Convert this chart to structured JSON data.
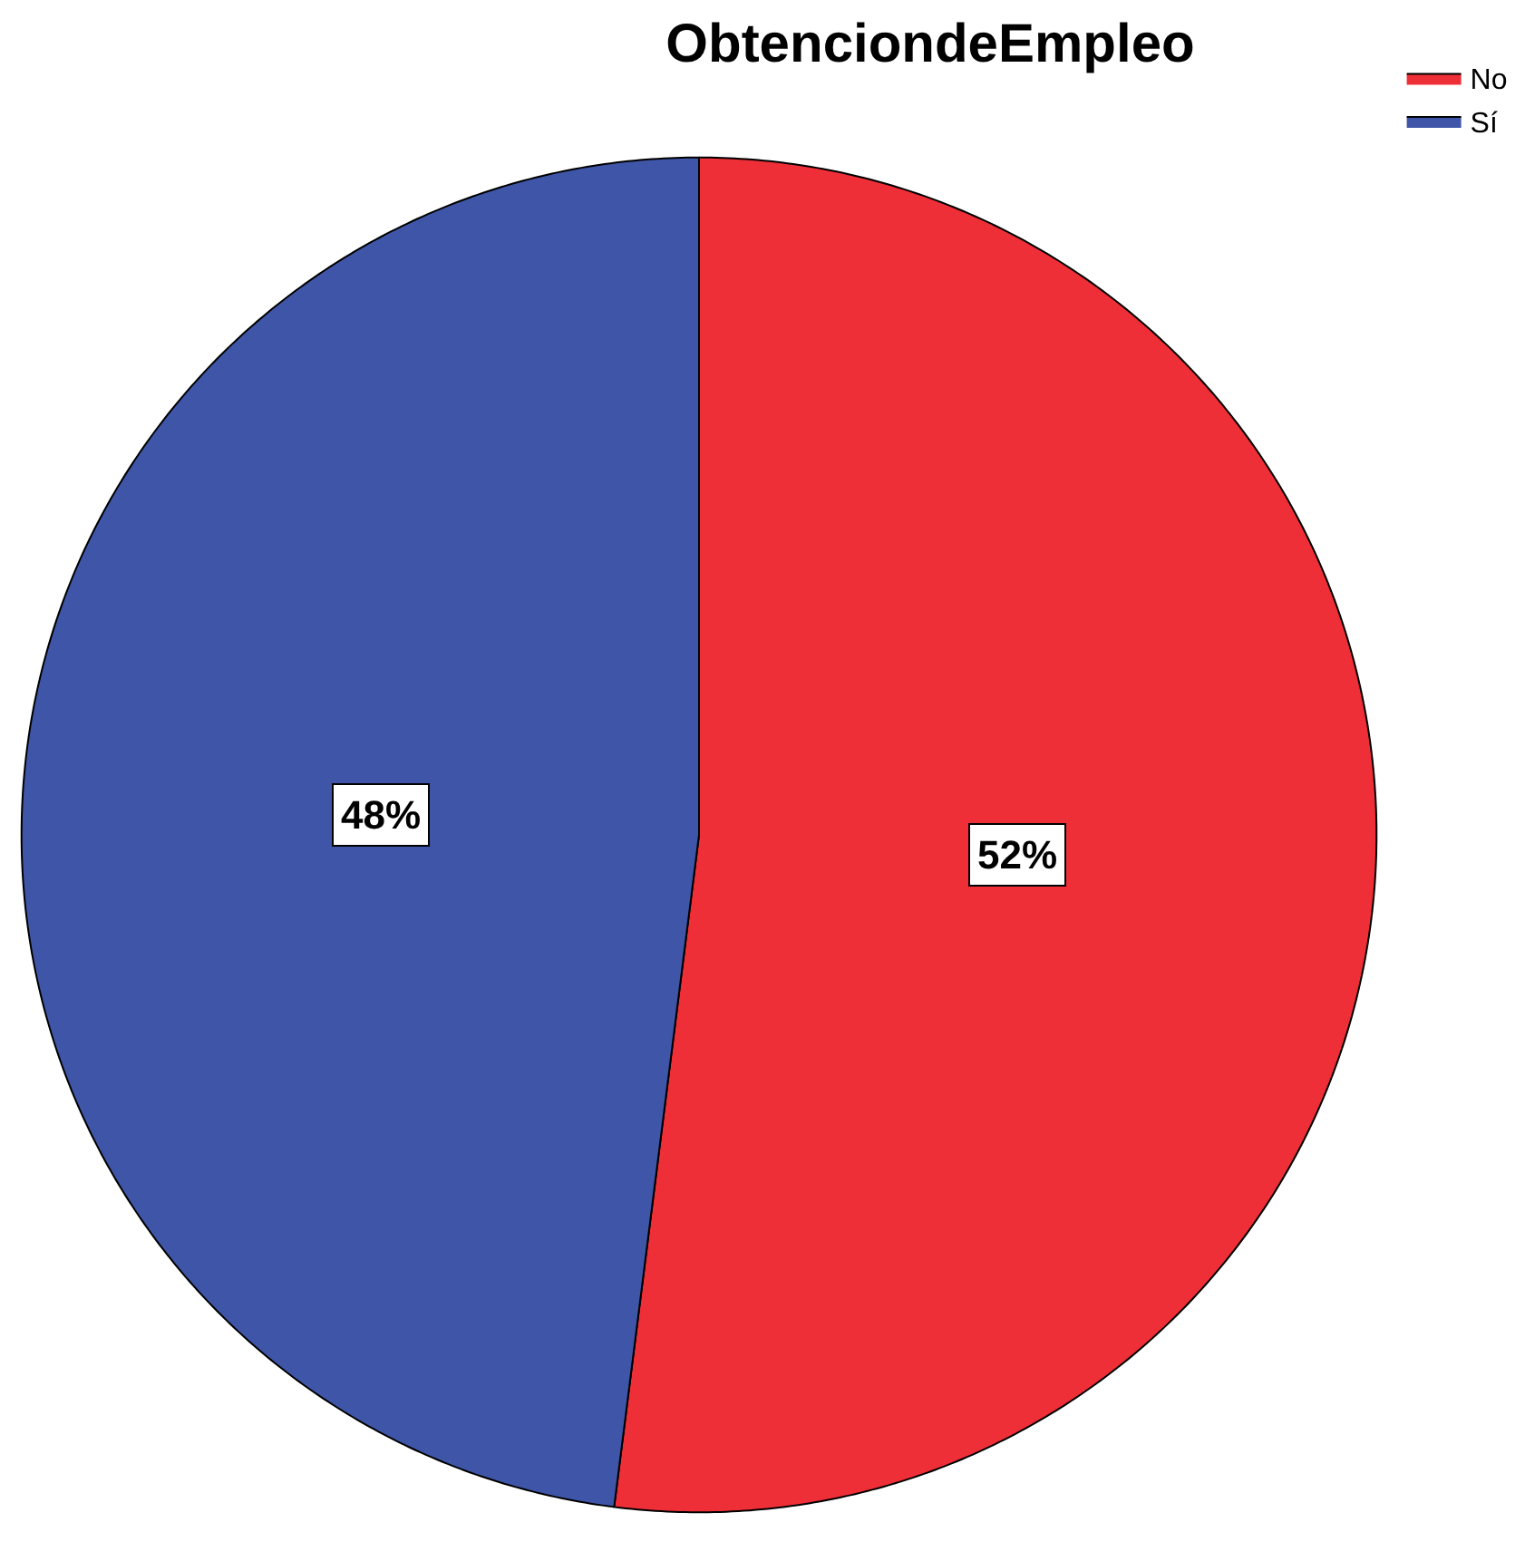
{
  "chart_data": {
    "type": "pie",
    "title": "ObtenciondeEmpleo",
    "categories": [
      "No",
      "Sí"
    ],
    "values": [
      52,
      48
    ],
    "colors": [
      "#ef2f37",
      "#3f56a8"
    ],
    "value_labels": [
      "52%",
      "48%"
    ],
    "legend": "top right"
  }
}
